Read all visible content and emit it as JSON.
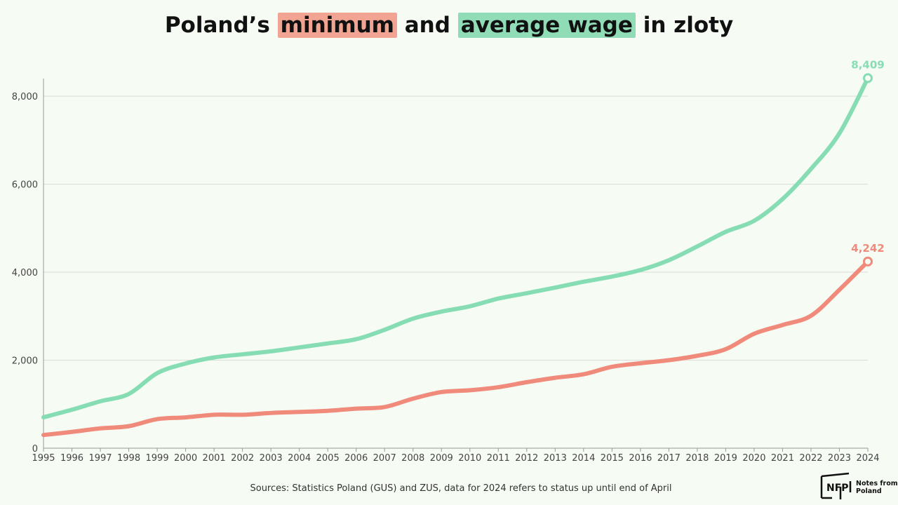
{
  "title": {
    "prefix": "Poland’s",
    "highlight_min": "minimum",
    "middle": "and",
    "highlight_avg": "average wage",
    "suffix": "in zloty"
  },
  "colors": {
    "minimum": "#f08a7b",
    "average": "#86ddb4",
    "background": "#f6fbf3",
    "grid": "#d9dcd6"
  },
  "source": "Sources: Statistics Poland (GUS) and ZUS, data for 2024 refers to status up until end of April",
  "logo": {
    "mark": "NFP",
    "text": "Notes from\nPoland"
  },
  "chart_data": {
    "type": "line",
    "title": "Poland’s minimum and average wage in zloty",
    "xlabel": "",
    "ylabel": "",
    "ylim": [
      0,
      8400
    ],
    "yticks": [
      0,
      2000,
      4000,
      6000,
      8000
    ],
    "ytick_labels": [
      "0",
      "2,000",
      "4,000",
      "6,000",
      "8,000"
    ],
    "grid": true,
    "legend": "none (title highlights)",
    "x": [
      "1995",
      "1996",
      "1997",
      "1998",
      "1999",
      "2000",
      "2001",
      "2002",
      "2003",
      "2004",
      "2005",
      "2006",
      "2007",
      "2008",
      "2009",
      "2010",
      "2011",
      "2012",
      "2013",
      "2014",
      "2015",
      "2016",
      "2017",
      "2018",
      "2019",
      "2020",
      "2021",
      "2022",
      "2023",
      "2024"
    ],
    "series": [
      {
        "name": "average wage",
        "color_key": "average",
        "values": [
          702,
          874,
          1066,
          1233,
          1706,
          1924,
          2062,
          2133,
          2201,
          2290,
          2380,
          2477,
          2691,
          2944,
          3103,
          3225,
          3400,
          3522,
          3650,
          3783,
          3900,
          4048,
          4272,
          4585,
          4918,
          5167,
          5662,
          6346,
          7155,
          8409
        ],
        "end_label": "8,409"
      },
      {
        "name": "minimum wage",
        "color_key": "minimum",
        "values": [
          300,
          370,
          450,
          500,
          660,
          700,
          760,
          760,
          800,
          824,
          849,
          899,
          936,
          1126,
          1276,
          1317,
          1386,
          1500,
          1600,
          1680,
          1850,
          1930,
          2000,
          2100,
          2250,
          2600,
          2800,
          3010,
          3600,
          4242
        ],
        "end_label": "4,242"
      }
    ]
  }
}
